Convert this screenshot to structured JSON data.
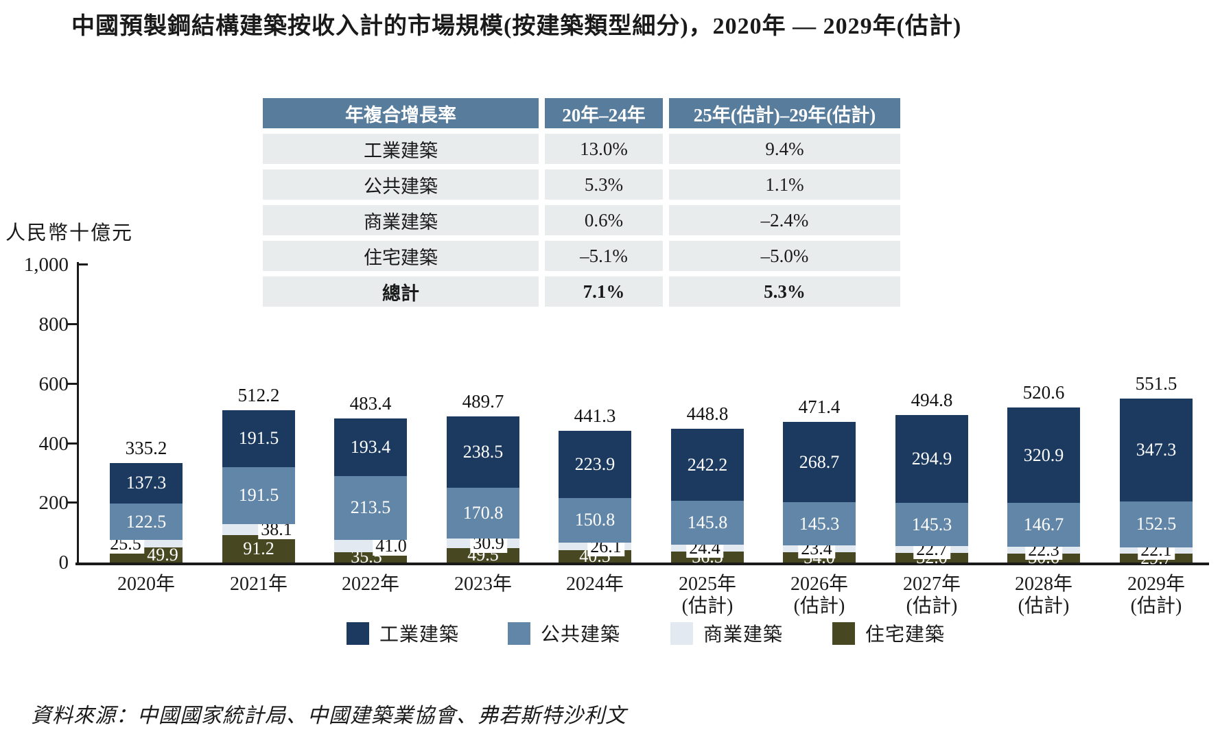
{
  "title": "中國預製鋼結構建築按收入計的市場規模(按建築類型細分)，2020年 — 2029年(估計)",
  "table": {
    "header": [
      "年複合增長率",
      "20年–24年",
      "25年(估計)–29年(估計)"
    ],
    "rows": [
      {
        "label": "工業建築",
        "v1": "13.0%",
        "v2": "9.4%",
        "bold": false
      },
      {
        "label": "公共建築",
        "v1": "5.3%",
        "v2": "1.1%",
        "bold": false
      },
      {
        "label": "商業建築",
        "v1": "0.6%",
        "v2": "–2.4%",
        "bold": false
      },
      {
        "label": "住宅建築",
        "v1": "–5.1%",
        "v2": "–5.0%",
        "bold": false
      },
      {
        "label": "總計",
        "v1": "7.1%",
        "v2": "5.3%",
        "bold": true
      }
    ]
  },
  "chart_data": {
    "type": "bar",
    "stacked": true,
    "title": "中國預製鋼結構建築按收入計的市場規模(按建築類型細分)，2020年 — 2029年(估計)",
    "unit_label": "人民幣十億元",
    "ylabel": "人民幣十億元",
    "xlabel": "",
    "ylim": [
      0,
      1000
    ],
    "yticks": [
      0,
      200,
      400,
      600,
      800,
      1000
    ],
    "ytick_labels": [
      "0",
      "200",
      "400",
      "600",
      "800",
      "1,000"
    ],
    "grid": false,
    "legend_position": "bottom",
    "categories": [
      "2020年",
      "2021年",
      "2022年",
      "2023年",
      "2024年",
      "2025年",
      "2026年",
      "2027年",
      "2028年",
      "2029年"
    ],
    "category_sublabels": [
      "",
      "",
      "",
      "",
      "",
      "(估計)",
      "(估計)",
      "(估計)",
      "(估計)",
      "(估計)"
    ],
    "series": [
      {
        "key": "industrial",
        "name": "工業建築",
        "color": "#1c3a60",
        "values": [
          137.3,
          191.5,
          193.4,
          238.5,
          223.9,
          242.2,
          268.7,
          294.9,
          320.9,
          347.3
        ]
      },
      {
        "key": "public",
        "name": "公共建築",
        "color": "#6286a7",
        "values": [
          122.5,
          191.5,
          213.5,
          170.8,
          150.8,
          145.8,
          145.3,
          145.3,
          146.7,
          152.5
        ]
      },
      {
        "key": "commercial",
        "name": "商業建築",
        "color": "#e2e9f0",
        "values": [
          25.5,
          38.1,
          41.0,
          30.9,
          26.1,
          24.4,
          23.4,
          22.7,
          22.3,
          22.1
        ]
      },
      {
        "key": "residential",
        "name": "住宅建築",
        "color": "#474721",
        "values": [
          49.9,
          91.2,
          35.5,
          49.5,
          40.5,
          36.5,
          34.0,
          32.0,
          30.6,
          29.7
        ]
      }
    ],
    "totals": [
      335.2,
      512.2,
      483.4,
      489.7,
      441.3,
      448.8,
      471.4,
      494.8,
      520.6,
      551.5
    ]
  },
  "legend": [
    {
      "key": "industrial",
      "name": "工業建築",
      "color": "#1c3a60"
    },
    {
      "key": "public",
      "name": "公共建築",
      "color": "#6286a7"
    },
    {
      "key": "commercial",
      "name": "商業建築",
      "color": "#e2e9f0"
    },
    {
      "key": "residential",
      "name": "住宅建築",
      "color": "#474721"
    }
  ],
  "source": "資料來源：中國國家統計局、中國建築業協會、弗若斯特沙利文"
}
